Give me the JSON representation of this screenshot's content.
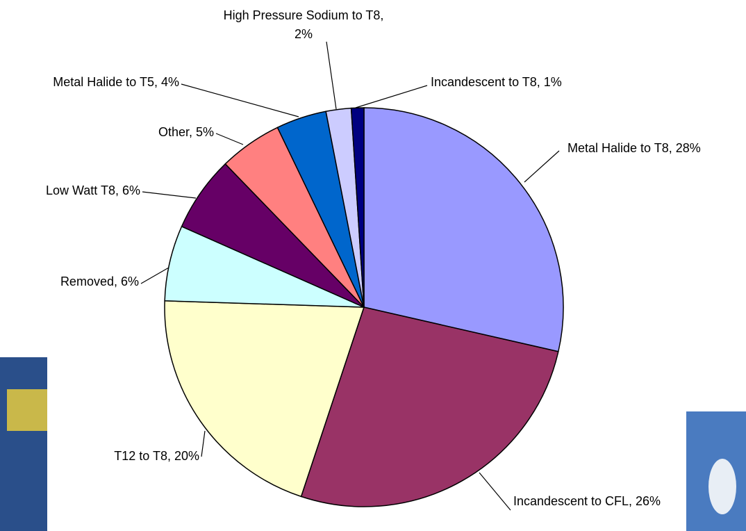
{
  "chart_data": {
    "type": "pie",
    "values": [
      28,
      26,
      20,
      6,
      6,
      5,
      4,
      2,
      1
    ],
    "value_labels": [
      "Metal Halide to T8, 28%",
      "Incandescent to CFL, 26%",
      "T12 to T8, 20%",
      "Removed, 6%",
      "Low Watt T8, 6%",
      "Other, 5%",
      "Metal Halide to T5, 4%",
      "High Pressure Sodium to T8, 2%",
      "Incandescent to T8, 1%"
    ],
    "colors": [
      "#9999ff",
      "#993366",
      "#ffffcc",
      "#ccffff",
      "#660066",
      "#ff8080",
      "#0066cc",
      "#ccccff",
      "#000080"
    ]
  }
}
